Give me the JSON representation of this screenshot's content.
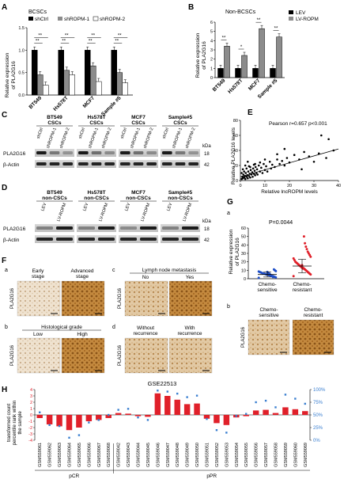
{
  "panels": {
    "A": "A",
    "B": "B",
    "C": "C",
    "D": "D",
    "E": "E",
    "F": "F",
    "G": "G",
    "H": "H"
  },
  "panel_A": {
    "subtitle": "BCSCs",
    "legend": [
      "shCtrl",
      "shROPM-1",
      "shROPM-2"
    ],
    "ylabel_line1": "Relative expression",
    "ylabel_line2": "of PLA2G16",
    "sig": [
      "**",
      "**",
      "**",
      "**",
      "**",
      "**",
      "**",
      "**"
    ]
  },
  "panel_B": {
    "subtitle": "Non-BCSCs",
    "legend": [
      "LEV",
      "LV-ROPM"
    ],
    "ylabel_line1": "Relative expression",
    "ylabel_line2": "of PLA2G16",
    "sig": [
      "**",
      "*",
      "**",
      "**"
    ]
  },
  "panel_C": {
    "groups": [
      {
        "name_line1": "BT549",
        "name_line2": "CSCs",
        "lanes": [
          "shCtrl",
          "shROPM-1",
          "shROPM-2"
        ]
      },
      {
        "name_line1": "Hs578T",
        "name_line2": "CSCs",
        "lanes": [
          "shCtrl",
          "shROPM-1",
          "shROPM-2"
        ]
      },
      {
        "name_line1": "MCF7",
        "name_line2": "CSCs",
        "lanes": [
          "shCtrl",
          "shROPM-1",
          "shROPM-2"
        ]
      },
      {
        "name_line1": "Sample#5",
        "name_line2": "CSCs",
        "lanes": [
          "shCtrl",
          "shROPM-1",
          "shROPM-2"
        ]
      }
    ],
    "rows": [
      "PLA2G16",
      "β-Actin"
    ],
    "kda_label": "kDa",
    "kda": [
      "18",
      "42"
    ]
  },
  "panel_D": {
    "groups": [
      {
        "name_line1": "BT549",
        "name_line2": "non-CSCs",
        "lanes": [
          "LEV",
          "LV-ROPM"
        ]
      },
      {
        "name_line1": "Hs578T",
        "name_line2": "non-CSCs",
        "lanes": [
          "LEV",
          "LV-ROPM"
        ]
      },
      {
        "name_line1": "MCF7",
        "name_line2": "non-CSCs",
        "lanes": [
          "LEV",
          "LV-ROPM"
        ]
      },
      {
        "name_line1": "Sample#5",
        "name_line2": "non-CSCs",
        "lanes": [
          "LEV",
          "LV-ROPM"
        ]
      }
    ],
    "rows": [
      "PLA2G16",
      "β-Actin"
    ],
    "kda_label": "kDa",
    "kda": [
      "18",
      "42"
    ]
  },
  "panel_E": {
    "annotation": "Pearson r=0.657 p<0.001",
    "ylabel_line1": "Relative PLA2G16 levels"
  },
  "panel_F": {
    "a": {
      "letter": "a",
      "left": "Early",
      "left2": "stage",
      "right": "Advanced",
      "right2": "stage"
    },
    "b": {
      "letter": "b",
      "title": "Histological grade",
      "left": "Low",
      "right": "High"
    },
    "c": {
      "letter": "c",
      "title": "Lymph node metastasis",
      "left": "No",
      "right": "Yes"
    },
    "d": {
      "letter": "d",
      "left": "Without",
      "left2": "recurrence",
      "right": "With",
      "right2": "recurrence"
    },
    "row_label": "PLA2G16"
  },
  "panel_G": {
    "a": {
      "letter": "a",
      "pvalue": "P=0.0044",
      "ylabel_line1": "Relative expression",
      "ylabel_line2": "of PLA2G16",
      "groups": [
        {
          "line1": "Chemo-",
          "line2": "sensitive"
        },
        {
          "line1": "Chemo-",
          "line2": "resistant"
        }
      ]
    },
    "b": {
      "letter": "b",
      "groups": [
        {
          "line1": "Chemo-",
          "line2": "sensitive"
        },
        {
          "line1": "Chemo-",
          "line2": "resistant"
        }
      ],
      "row_label": "PLA2G16"
    }
  },
  "panel_H": {
    "title": "GSE22513",
    "ylabel_line1": "transformed count",
    "ylabel_line2": "percentile rank within",
    "ylabel_line3": "the sample",
    "group_labels": [
      "pCR",
      "pPR"
    ],
    "samples": [
      "GSM559061",
      "GSM559062",
      "GSM559063",
      "GSM559064",
      "GSM559065",
      "GSM559066",
      "GSM559067",
      "GSM559068",
      "GSM559042",
      "GSM559043",
      "GSM559044",
      "GSM559045",
      "GSM559046",
      "GSM559047",
      "GSM559048",
      "GSM559049",
      "GSM559050",
      "GSM559051",
      "GSM559052",
      "GSM559053",
      "GSM559054",
      "GSM559055",
      "GSM559056",
      "GSM559057",
      "GSM559058",
      "GSM559059",
      "GSM559060",
      "GSM559069"
    ],
    "pcr_count": 8
  },
  "chart_data": [
    {
      "type": "bar",
      "panel": "A",
      "title": "BCSCs",
      "ylabel": "Relative expression of PLA2G16",
      "ylim": [
        0,
        1.5
      ],
      "yticks": [
        0.0,
        0.5,
        1.0,
        1.5
      ],
      "categories": [
        "BT549",
        "Hs578T",
        "MCF7",
        "Sample #5"
      ],
      "series": [
        {
          "name": "shCtrl",
          "values": [
            1.0,
            1.0,
            1.0,
            1.0
          ],
          "color": "#000000"
        },
        {
          "name": "shROPM-1",
          "values": [
            0.45,
            0.55,
            0.65,
            0.5
          ],
          "color": "#8c8c8c"
        },
        {
          "name": "shROPM-2",
          "values": [
            0.22,
            0.45,
            0.3,
            0.27
          ],
          "color": "#ffffff"
        }
      ]
    },
    {
      "type": "bar",
      "panel": "B",
      "title": "Non-BCSCs",
      "ylabel": "Relative expression of PLA2G16",
      "ylim": [
        0,
        6
      ],
      "yticks": [
        0,
        1,
        2,
        3,
        4,
        5,
        6
      ],
      "categories": [
        "BT549",
        "Hs578T",
        "MCF7",
        "Sample #5"
      ],
      "series": [
        {
          "name": "LEV",
          "values": [
            1.0,
            1.0,
            1.0,
            1.0
          ],
          "color": "#000000"
        },
        {
          "name": "LV-ROPM",
          "values": [
            3.4,
            2.4,
            5.3,
            4.4
          ],
          "color": "#8c8c8c"
        }
      ]
    },
    {
      "type": "scatter",
      "panel": "E",
      "xlabel": "Relative lncROPM levels",
      "ylabel": "Relative PLA2G16 levels",
      "xlim": [
        0,
        40
      ],
      "ylim": [
        0,
        80
      ],
      "xticks": [
        0,
        10,
        20,
        30,
        40
      ],
      "yticks": [
        0,
        20,
        40,
        60,
        80
      ],
      "points": [
        [
          0.5,
          2
        ],
        [
          0.8,
          5
        ],
        [
          1,
          3
        ],
        [
          1.2,
          8
        ],
        [
          1.5,
          4
        ],
        [
          1.8,
          6
        ],
        [
          2,
          2
        ],
        [
          2.2,
          10
        ],
        [
          2.5,
          5
        ],
        [
          2.8,
          7
        ],
        [
          3,
          3
        ],
        [
          3.2,
          12
        ],
        [
          3.5,
          6
        ],
        [
          3.8,
          9
        ],
        [
          4,
          4
        ],
        [
          4.2,
          14
        ],
        [
          4.5,
          8
        ],
        [
          4.8,
          11
        ],
        [
          5,
          5
        ],
        [
          5.2,
          16
        ],
        [
          5.5,
          9
        ],
        [
          5.8,
          13
        ],
        [
          6,
          7
        ],
        [
          6.2,
          18
        ],
        [
          6.5,
          10
        ],
        [
          6.8,
          15
        ],
        [
          7,
          8
        ],
        [
          7.5,
          20
        ],
        [
          8,
          12
        ],
        [
          8.5,
          17
        ],
        [
          9,
          10
        ],
        [
          9.5,
          22
        ],
        [
          10,
          14
        ],
        [
          10.5,
          19
        ],
        [
          11,
          12
        ],
        [
          12,
          25
        ],
        [
          12.5,
          16
        ],
        [
          13,
          21
        ],
        [
          14,
          18
        ],
        [
          15,
          28
        ],
        [
          16,
          22
        ],
        [
          17,
          26
        ],
        [
          18,
          20
        ],
        [
          19,
          30
        ],
        [
          20,
          24
        ],
        [
          22,
          34
        ],
        [
          24,
          28
        ],
        [
          26,
          38
        ],
        [
          28,
          32
        ],
        [
          30,
          25
        ],
        [
          32,
          36
        ],
        [
          35,
          30
        ],
        [
          38,
          40
        ],
        [
          1,
          15
        ],
        [
          2,
          20
        ],
        [
          3,
          25
        ],
        [
          4,
          18
        ],
        [
          6,
          22
        ],
        [
          25,
          15
        ],
        [
          33,
          60
        ],
        [
          36,
          55
        ],
        [
          18,
          42
        ],
        [
          15,
          35
        ],
        [
          10,
          28
        ],
        [
          8,
          24
        ],
        [
          0.5,
          10
        ],
        [
          1.5,
          12
        ],
        [
          2.5,
          16
        ],
        [
          3.5,
          19
        ],
        [
          5.5,
          21
        ]
      ],
      "trend": {
        "x": [
          0,
          40
        ],
        "y": [
          5,
          42
        ]
      },
      "annotation": "Pearson r=0.657 p<0.001"
    },
    {
      "type": "scatter",
      "panel": "G-a",
      "ylabel": "Relative expression of PLA2G16",
      "ylim": [
        0,
        60
      ],
      "yticks": [
        0,
        10,
        20,
        30,
        40,
        50,
        60
      ],
      "categories": [
        "Chemo-sensitive",
        "Chemo-resistant"
      ],
      "series": [
        {
          "name": "Chemo-sensitive",
          "color": "#1f4fc8",
          "mean": 5,
          "sd": 3,
          "values": [
            1,
            1.5,
            2,
            2.5,
            3,
            3,
            3.5,
            4,
            4,
            4.5,
            5,
            5,
            5.5,
            6,
            6,
            6.5,
            7,
            7.5,
            8,
            8.5,
            9,
            10,
            11,
            2,
            3,
            4,
            5,
            6,
            7,
            8
          ]
        },
        {
          "name": "Chemo-resistant",
          "color": "#e0202a",
          "mean": 15,
          "sd": 8,
          "values": [
            3,
            5,
            6,
            7,
            8,
            9,
            10,
            11,
            12,
            12,
            13,
            14,
            15,
            16,
            17,
            18,
            19,
            20,
            22,
            24,
            26,
            28,
            30,
            32,
            35,
            38,
            42,
            50,
            13,
            16
          ]
        }
      ]
    },
    {
      "type": "bar",
      "panel": "H",
      "title": "GSE22513",
      "ylim": [
        -4,
        4
      ],
      "yticks": [
        -4,
        -3,
        -2,
        -1,
        0,
        1,
        2,
        3,
        4
      ],
      "right_axis": [
        "0%",
        "25%",
        "50%",
        "75%",
        "100%"
      ],
      "categories": [
        "GSM559061",
        "GSM559062",
        "GSM559063",
        "GSM559064",
        "GSM559065",
        "GSM559066",
        "GSM559067",
        "GSM559068",
        "GSM559042",
        "GSM559043",
        "GSM559044",
        "GSM559045",
        "GSM559046",
        "GSM559047",
        "GSM559048",
        "GSM559049",
        "GSM559050",
        "GSM559051",
        "GSM559052",
        "GSM559053",
        "GSM559054",
        "GSM559055",
        "GSM559056",
        "GSM559057",
        "GSM559058",
        "GSM559059",
        "GSM559060",
        "GSM559069"
      ],
      "series": [
        {
          "name": "transformed count",
          "color": "#e0202a",
          "values": [
            -0.5,
            -1.5,
            -1.8,
            -2.4,
            -2.0,
            -1.0,
            -0.8,
            -0.5,
            0.3,
            0.2,
            -0.2,
            -0.3,
            3.4,
            3.0,
            2.4,
            1.7,
            1.8,
            -0.6,
            -1.3,
            -1.6,
            -0.4,
            -0.2,
            0.7,
            0.8,
            0.3,
            1.2,
            0.9,
            0.6
          ]
        },
        {
          "name": "percentile rank within the sample",
          "color": "#3a7fd0",
          "values": [
            55,
            30,
            28,
            5,
            10,
            35,
            40,
            50,
            60,
            62,
            45,
            40,
            98,
            96,
            92,
            85,
            88,
            42,
            20,
            15,
            48,
            52,
            75,
            78,
            65,
            90,
            82,
            72
          ]
        }
      ]
    }
  ]
}
